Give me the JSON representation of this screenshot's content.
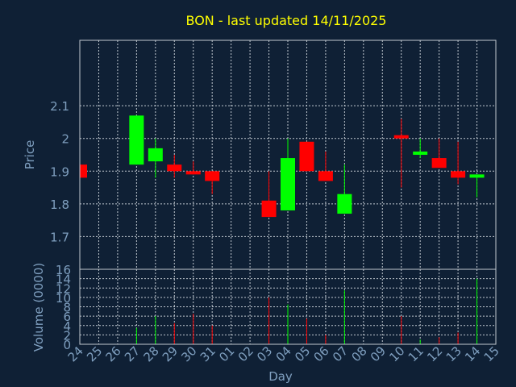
{
  "chart_data": {
    "type": "candlestick",
    "title": "BON - last updated 14/11/2025",
    "xlabel": "Day",
    "ylabel_price": "Price",
    "ylabel_volume": "Volume (0000)",
    "days": [
      "24",
      "25",
      "26",
      "27",
      "28",
      "29",
      "30",
      "31",
      "01",
      "02",
      "03",
      "04",
      "05",
      "06",
      "07",
      "08",
      "09",
      "10",
      "11",
      "12",
      "13",
      "14",
      "15"
    ],
    "price_ylim": [
      1.6,
      2.3
    ],
    "price_ticks": [
      "1.7",
      "1.8",
      "1.9",
      "2",
      "2.1"
    ],
    "volume_ylim": [
      0,
      16
    ],
    "volume_ticks": [
      "0",
      "2",
      "4",
      "6",
      "8",
      "10",
      "12",
      "14",
      "16"
    ],
    "grid": true,
    "candles": [
      {
        "day": "24",
        "open": 1.92,
        "close": 1.88,
        "high": 1.92,
        "low": 1.88,
        "volume": 0
      },
      {
        "day": "27",
        "open": 1.92,
        "close": 2.07,
        "high": 2.07,
        "low": 1.92,
        "volume": 3.5
      },
      {
        "day": "28",
        "open": 1.93,
        "close": 1.97,
        "high": 2.0,
        "low": 1.88,
        "volume": 6
      },
      {
        "day": "29",
        "open": 1.92,
        "close": 1.9,
        "high": 1.95,
        "low": 1.88,
        "volume": 4.5
      },
      {
        "day": "30",
        "open": 1.9,
        "close": 1.89,
        "high": 1.93,
        "low": 1.89,
        "volume": 6.5
      },
      {
        "day": "31",
        "open": 1.9,
        "close": 1.87,
        "high": 1.9,
        "low": 1.83,
        "volume": 4
      },
      {
        "day": "03",
        "open": 1.81,
        "close": 1.76,
        "high": 1.9,
        "low": 1.76,
        "volume": 10
      },
      {
        "day": "04",
        "open": 1.78,
        "close": 1.94,
        "high": 2.0,
        "low": 1.78,
        "volume": 8.5
      },
      {
        "day": "05",
        "open": 1.99,
        "close": 1.9,
        "high": 1.99,
        "low": 1.9,
        "volume": 5.5
      },
      {
        "day": "06",
        "open": 1.9,
        "close": 1.87,
        "high": 1.96,
        "low": 1.87,
        "volume": 2
      },
      {
        "day": "07",
        "open": 1.77,
        "close": 1.83,
        "high": 1.92,
        "low": 1.77,
        "volume": 11.5
      },
      {
        "day": "10",
        "open": 2.01,
        "close": 2.0,
        "high": 2.06,
        "low": 1.85,
        "volume": 6
      },
      {
        "day": "11",
        "open": 1.95,
        "close": 1.96,
        "high": 2.0,
        "low": 1.94,
        "volume": 1
      },
      {
        "day": "12",
        "open": 1.94,
        "close": 1.91,
        "high": 2.0,
        "low": 1.91,
        "volume": 1.5
      },
      {
        "day": "13",
        "open": 1.9,
        "close": 1.88,
        "high": 1.99,
        "low": 1.86,
        "volume": 2.5
      },
      {
        "day": "14",
        "open": 1.88,
        "close": 1.89,
        "high": 1.89,
        "low": 1.82,
        "volume": 14
      }
    ],
    "colors": {
      "background": "#0f2035",
      "up": "#00ff00",
      "down": "#ff0000",
      "title": "#ffff00",
      "axis_text": "#7f9fbf",
      "grid": "#c0c8d0"
    }
  }
}
